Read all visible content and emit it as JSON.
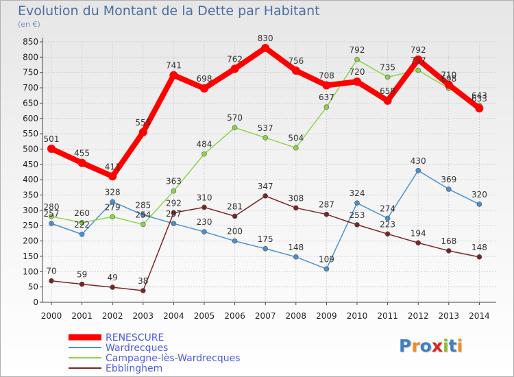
{
  "title": "Evolution du Montant de la Dette par Habitant",
  "subtitle": "(en €)",
  "logo": {
    "text": "Proxiti",
    "letters": [
      "P",
      "r",
      "o",
      "x",
      "i",
      "t",
      "i"
    ],
    "colors": [
      "#3f7fbf",
      "#f28c1e",
      "#3f7fbf",
      "#d9261c",
      "#8cbf2a",
      "#3f7fbf",
      "#f28c1e"
    ]
  },
  "chart_data": {
    "type": "line",
    "title": "Evolution du Montant de la Dette par Habitant",
    "subtitle": "(en €)",
    "x": [
      "2000",
      "2001",
      "2002",
      "2003",
      "2004",
      "2005",
      "2006",
      "2007",
      "2008",
      "2009",
      "2010",
      "2011",
      "2012",
      "2013",
      "2014"
    ],
    "ylim": [
      0,
      850
    ],
    "yticks": [
      0,
      50,
      100,
      150,
      200,
      250,
      300,
      350,
      400,
      450,
      500,
      550,
      600,
      650,
      700,
      750,
      800,
      850
    ],
    "grid": true,
    "legend_position": "bottom-left",
    "series": [
      {
        "name": "RENESCURE",
        "color": "#ff0000",
        "values": [
          501,
          455,
          411,
          555,
          741,
          698,
          762,
          830,
          756,
          708,
          720,
          658,
          792,
          710,
          633
        ],
        "labels": [
          "501",
          "455",
          "411",
          "555",
          "741",
          "698",
          "762",
          "830",
          "756",
          "708",
          "720",
          "658",
          "792",
          "710",
          "633"
        ]
      },
      {
        "name": "Wardrecques",
        "color": "#4a90d0",
        "values": [
          257,
          222,
          328,
          285,
          257,
          230,
          200,
          175,
          148,
          109,
          324,
          274,
          430,
          369,
          320
        ],
        "labels": [
          "257",
          "222",
          "328",
          "285",
          "257",
          "230",
          "200",
          "175",
          "148",
          "109",
          "324",
          "274",
          "430",
          "369",
          "320"
        ]
      },
      {
        "name": "Campagne-lès-Wardrecques",
        "color": "#8cd44a",
        "values": [
          280,
          260,
          279,
          254,
          363,
          484,
          570,
          537,
          504,
          637,
          792,
          735,
          757,
          698,
          643
        ],
        "labels": [
          "280",
          "260",
          "279",
          "254",
          "363",
          "484",
          "570",
          "537",
          "504",
          "637",
          "792",
          "735",
          "757",
          "698",
          "643"
        ]
      },
      {
        "name": "Ebblinghem",
        "color": "#7a2424",
        "values": [
          70,
          59,
          49,
          38,
          292,
          310,
          281,
          347,
          308,
          287,
          253,
          223,
          194,
          168,
          148
        ],
        "labels": [
          "70",
          "59",
          "49",
          "38",
          "292",
          "310",
          "281",
          "347",
          "308",
          "287",
          "253",
          "223",
          "194",
          "168",
          "148"
        ]
      }
    ]
  }
}
